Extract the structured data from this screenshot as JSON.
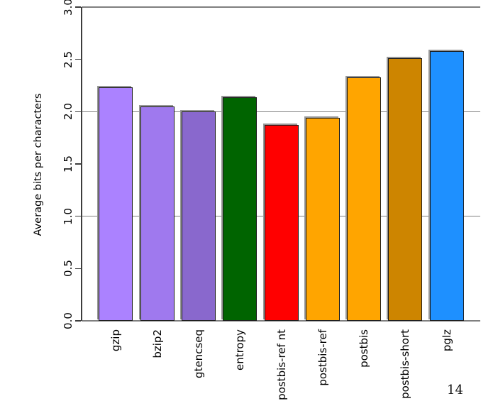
{
  "page": {
    "page_number": "14"
  },
  "chart_data": {
    "type": "bar",
    "title": "",
    "xlabel": "",
    "ylabel": "Average bits per characters",
    "ylim": [
      0,
      3.0
    ],
    "ytick_labels": [
      "0.0",
      "0.5",
      "1.0",
      "1.5",
      "2.0",
      "2.5",
      "3.0"
    ],
    "ytick_values": [
      0.0,
      0.5,
      1.0,
      1.5,
      2.0,
      2.5,
      3.0
    ],
    "gridline_values": [
      0.0,
      1.0,
      2.0,
      3.0
    ],
    "grid_on": true,
    "legend": null,
    "categories": [
      "gzip",
      "bzip2",
      "gtencseq",
      "entropy",
      "postbis-ref nt",
      "postbis-ref",
      "postbis",
      "postbis-short",
      "pglz"
    ],
    "values": [
      2.23,
      2.05,
      2.0,
      2.14,
      1.87,
      1.94,
      2.33,
      2.51,
      2.58
    ],
    "bar_colors": [
      "#ab82ff",
      "#9f79ee",
      "#8968cd",
      "#006400",
      "#ff0000",
      "#ffa500",
      "#ffa500",
      "#cd8500",
      "#1e90ff"
    ],
    "grid_color": "#808080",
    "axis_color": "#3d3d3d",
    "bar_border_color": "#1c1c1c",
    "text_color": "#000000"
  }
}
